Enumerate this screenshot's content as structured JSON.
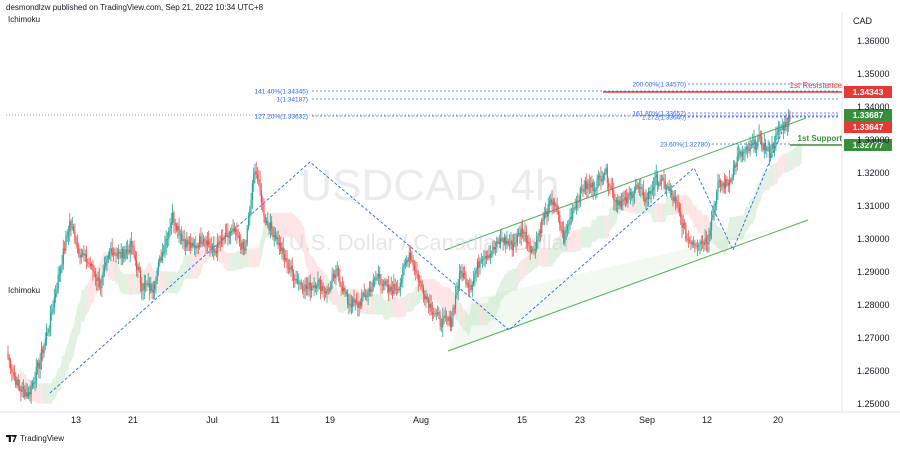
{
  "header": {
    "published": "desmondlzw published on TradingView.com, Sep 21, 2022 10:34 UTC+8",
    "indicator": "Ichimoku",
    "indicator_bottom": "Ichimoku",
    "currency": "CAD",
    "brand": "TradingView"
  },
  "watermark": {
    "symbol": "USDCAD, 4h",
    "name": "U.S. Dollar / Canadian Dollar"
  },
  "colors": {
    "up": "#26a69a",
    "down": "#ef5350",
    "cloud_bull": "#c8e6c9",
    "cloud_bear": "#ffcdd2",
    "fib_line": "#2962ff",
    "resistance": "#e53935",
    "support": "#388e3c",
    "channel": "#4caf50"
  },
  "chart_data": {
    "type": "candlestick",
    "symbol": "USDCAD",
    "timeframe": "4h",
    "ylim": [
      1.247,
      1.368
    ],
    "y_ticks": [
      "1.25000",
      "1.26000",
      "1.27000",
      "1.28000",
      "1.29000",
      "1.30000",
      "1.31000",
      "1.32000",
      "1.33000",
      "1.34000",
      "1.35000",
      "1.36000"
    ],
    "x_ticks": [
      "13",
      "21",
      "Jul",
      "11",
      "19",
      "Aug",
      "15",
      "23",
      "Sep",
      "12",
      "20"
    ],
    "price_points": [
      1.264,
      1.255,
      1.253,
      1.262,
      1.274,
      1.29,
      1.305,
      1.296,
      1.292,
      1.286,
      1.297,
      1.295,
      1.298,
      1.286,
      1.285,
      1.296,
      1.307,
      1.3,
      1.297,
      1.301,
      1.296,
      1.3,
      1.302,
      1.296,
      1.322,
      1.306,
      1.301,
      1.293,
      1.288,
      1.285,
      1.287,
      1.284,
      1.29,
      1.281,
      1.28,
      1.284,
      1.289,
      1.284,
      1.286,
      1.296,
      1.287,
      1.28,
      1.275,
      1.275,
      1.29,
      1.286,
      1.295,
      1.296,
      1.3,
      1.298,
      1.303,
      1.296,
      1.306,
      1.312,
      1.3,
      1.31,
      1.316,
      1.316,
      1.321,
      1.312,
      1.311,
      1.316,
      1.312,
      1.318,
      1.316,
      1.31,
      1.3,
      1.299,
      1.3,
      1.316,
      1.317,
      1.325,
      1.327,
      1.33,
      1.326,
      1.333,
      1.3364
    ],
    "annotations": {
      "fib_levels": [
        "200.00%(1.34570)",
        "141.40%(1.34345)",
        "1(1.34187)",
        "127.20%(1.33632)",
        "161.80%(1.33652)",
        "1.272(1.33640)",
        "23.60%(1.32780)"
      ],
      "resistance_label": "1st Resistance",
      "support_label": "1st Support",
      "price_tags": [
        {
          "value": "1.34343",
          "color": "#e53935"
        },
        {
          "value": "1.33687",
          "color": "#388e3c"
        },
        {
          "value": "1.33647",
          "color": "#e53935"
        },
        {
          "value": "1.32777",
          "color": "#388e3c"
        }
      ]
    }
  }
}
